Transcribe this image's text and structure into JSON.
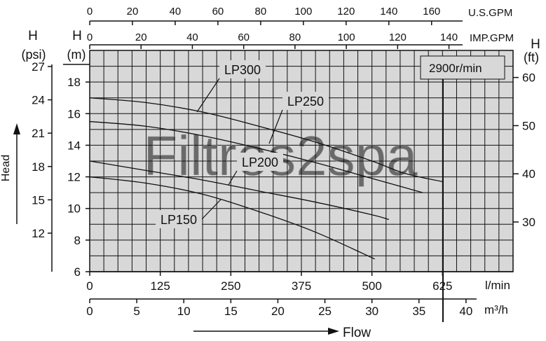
{
  "chart_data": {
    "type": "line",
    "title": "",
    "speed_label": "2900r/min",
    "watermark": "Filtres2spa",
    "xlabel": "Flow",
    "ylabel": "Head",
    "x_unit_lmin": "l/min",
    "x_unit_m3h": "m³/h",
    "top_unit_usgpm": "U.S.GPM",
    "top_unit_impgpm": "IMP.GPM",
    "y_head_m_title": "H",
    "y_head_m_unit": "(m)",
    "y_head_psi_title": "H",
    "y_head_psi_unit": "(psi)",
    "y_head_ft_title": "H",
    "y_head_ft_unit": "(ft)",
    "xlim_lmin": [
      0,
      750
    ],
    "ylim_m": [
      6,
      20
    ],
    "grid": true,
    "axes": {
      "lmin_ticks": [
        0,
        125,
        250,
        375,
        500,
        625
      ],
      "m3h_ticks": [
        0,
        5,
        10,
        15,
        20,
        25,
        30,
        35,
        40
      ],
      "usgpm_ticks": [
        0,
        20,
        40,
        60,
        80,
        100,
        120,
        140,
        160
      ],
      "impgpm_ticks": [
        0,
        20,
        40,
        60,
        80,
        100,
        120,
        140
      ],
      "m_ticks": [
        6,
        8,
        10,
        12,
        14,
        16,
        18
      ],
      "psi_ticks": [
        12,
        15,
        18,
        21,
        24,
        27
      ],
      "ft_ticks": [
        30,
        40,
        50,
        60
      ]
    },
    "series": [
      {
        "name": "LP300",
        "x": [
          0,
          100,
          200,
          300,
          400,
          500,
          560,
          625
        ],
        "y": [
          17.0,
          16.7,
          16.1,
          15.2,
          14.2,
          13.0,
          12.2,
          11.7
        ]
      },
      {
        "name": "LP250",
        "x": [
          0,
          100,
          200,
          300,
          400,
          500,
          590
        ],
        "y": [
          15.5,
          15.2,
          14.6,
          13.8,
          12.9,
          11.9,
          11.0
        ]
      },
      {
        "name": "LP200",
        "x": [
          0,
          100,
          200,
          300,
          400,
          500,
          530
        ],
        "y": [
          13.0,
          12.4,
          11.8,
          11.1,
          10.4,
          9.6,
          9.3
        ]
      },
      {
        "name": "LP150",
        "x": [
          0,
          100,
          200,
          300,
          400,
          505
        ],
        "y": [
          12.0,
          11.6,
          10.9,
          9.8,
          8.5,
          6.8
        ]
      }
    ]
  }
}
